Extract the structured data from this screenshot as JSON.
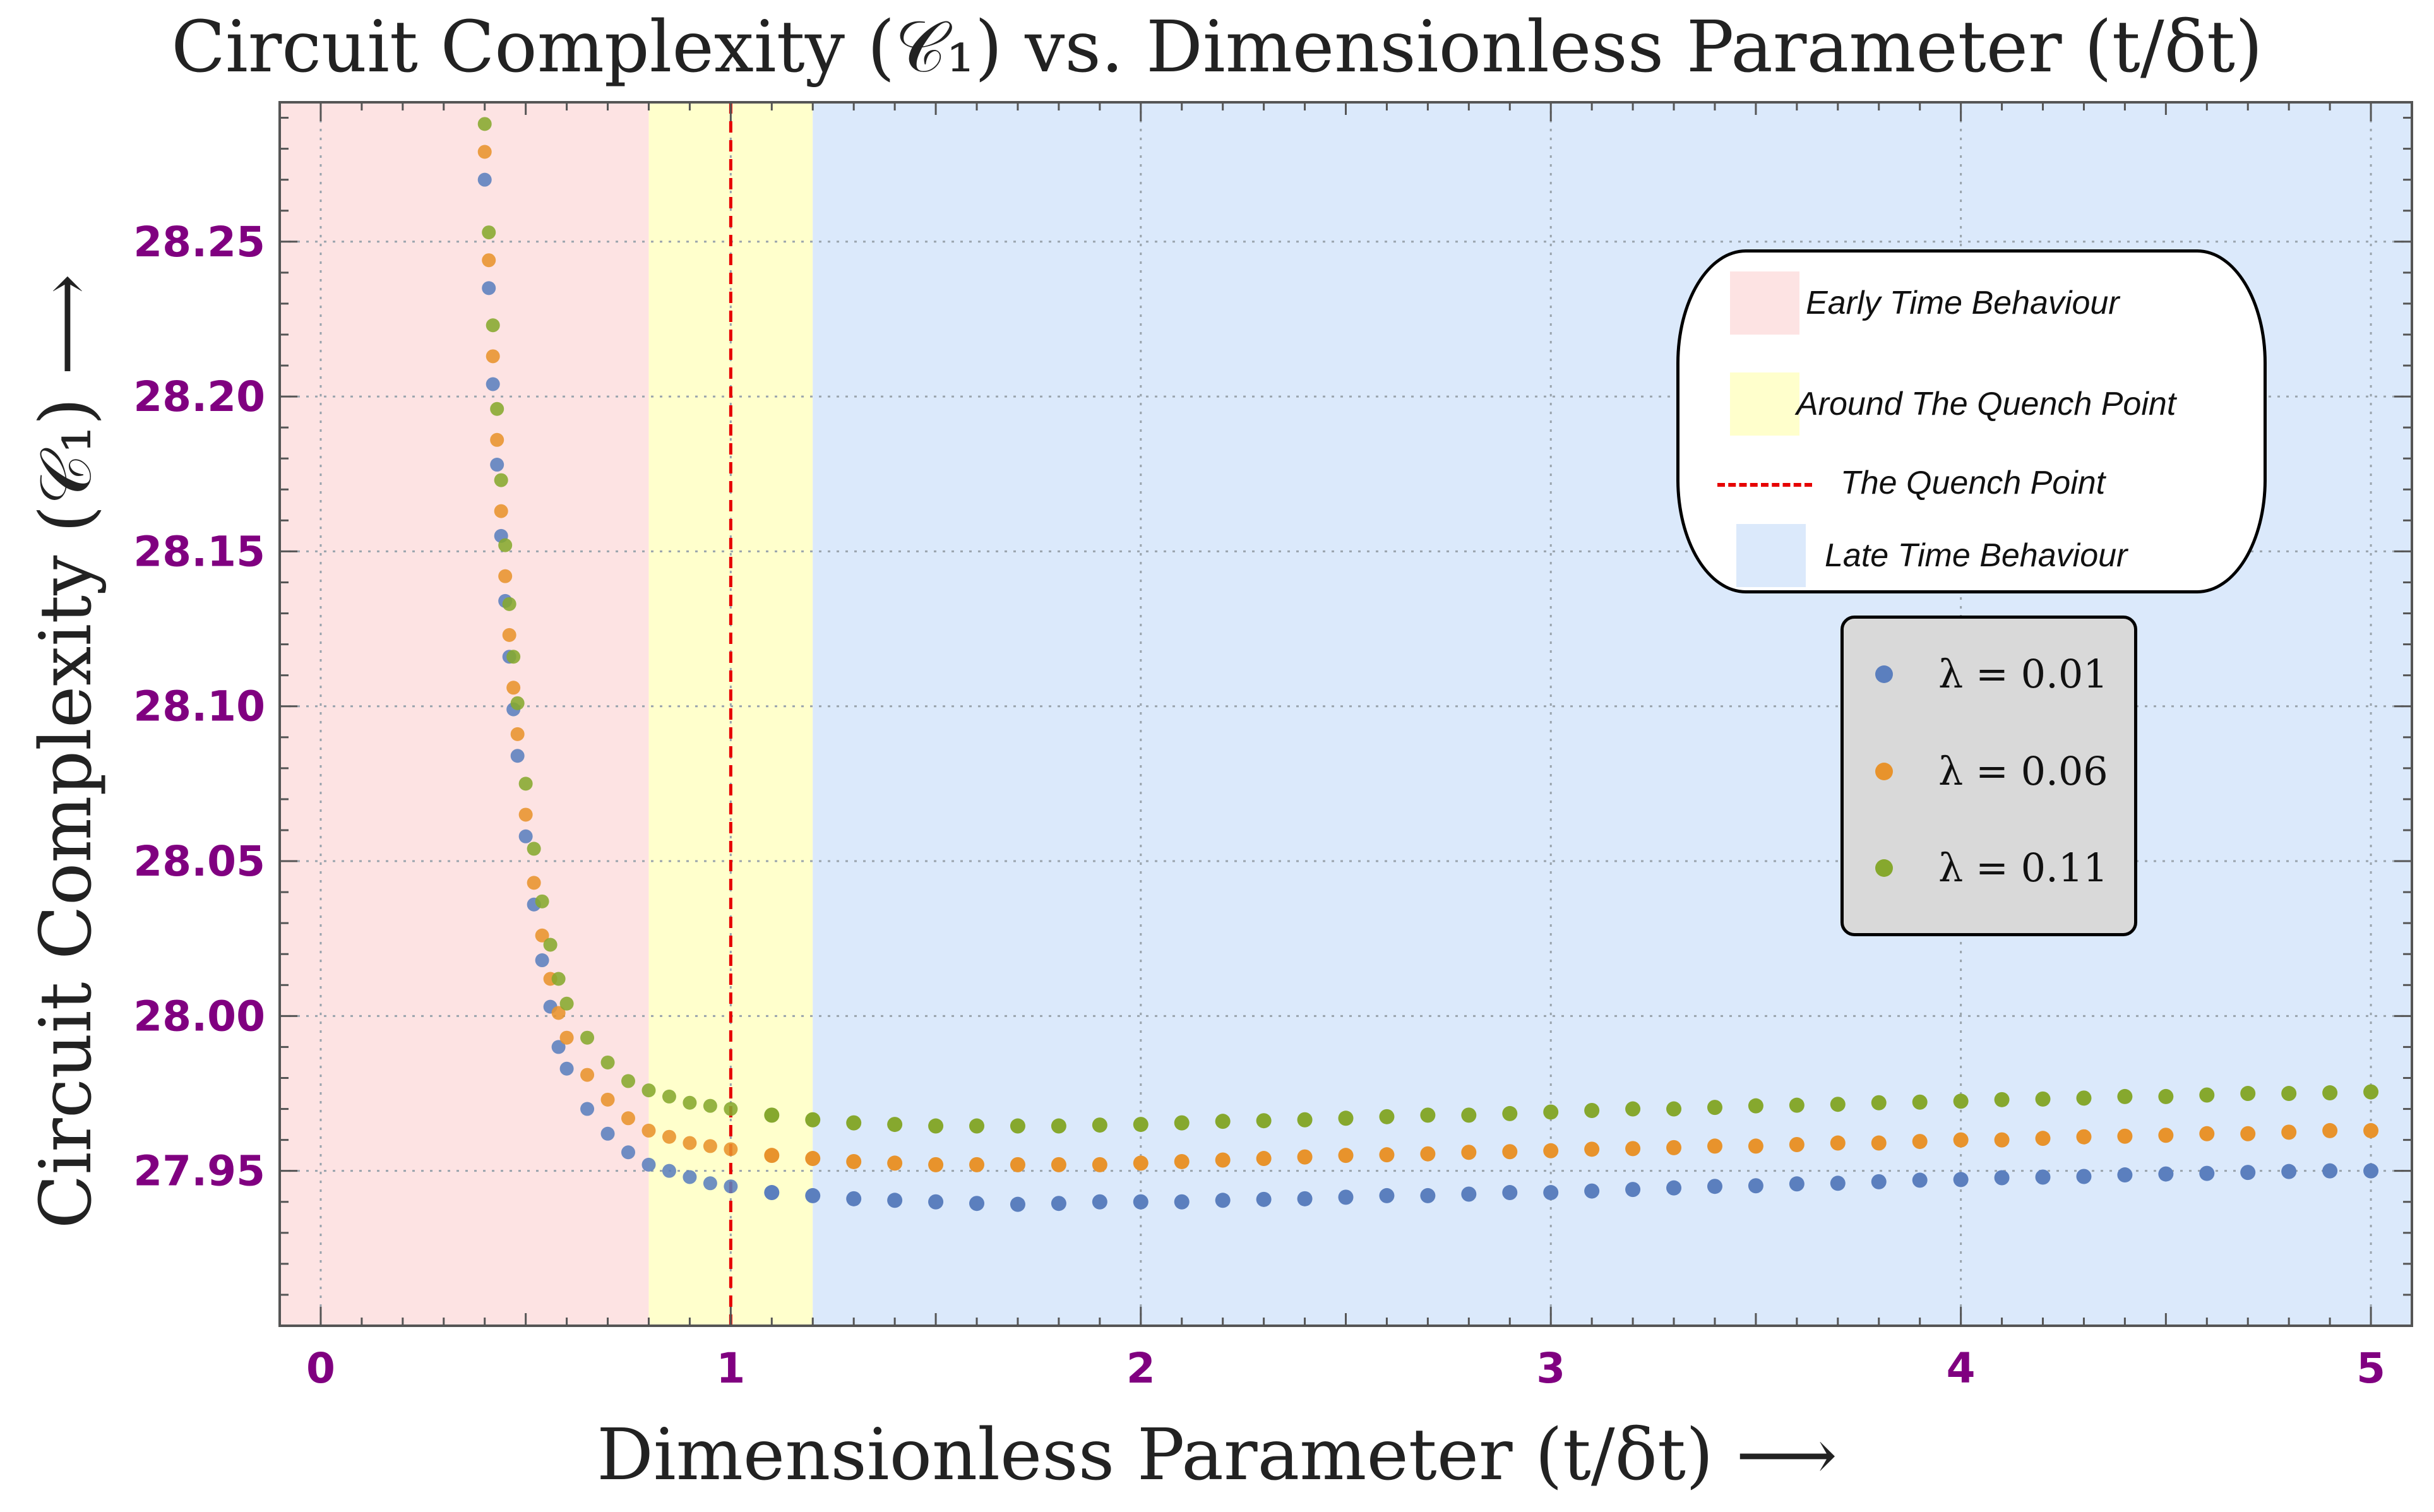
{
  "chart_data": {
    "type": "scatter",
    "title": "Circuit Complexity (𝒞₁) vs. Dimensionless Parameter (t/δt)",
    "xlabel": "Dimensionless Parameter (t/δt) ⟶",
    "ylabel": "Circuit Complexity (𝒞₁) ⟶",
    "xlim": [
      -0.1,
      5.1
    ],
    "ylim": [
      27.9,
      28.295
    ],
    "x_ticks": [
      0,
      1,
      2,
      3,
      4,
      5
    ],
    "x_tick_labels": [
      "0",
      "1",
      "2",
      "3",
      "4",
      "5"
    ],
    "y_ticks": [
      27.95,
      28.0,
      28.05,
      28.1,
      28.15,
      28.2,
      28.25
    ],
    "y_tick_labels": [
      "27.95",
      "28.00",
      "28.05",
      "28.10",
      "28.15",
      "28.20",
      "28.25"
    ],
    "grid": true,
    "regions": [
      {
        "name": "early",
        "label": "Early Time Behaviour",
        "x_from": -0.1,
        "x_to": 0.8,
        "color": "#fde3e3"
      },
      {
        "name": "around",
        "label": "Around The Quench Point",
        "x_from": 0.8,
        "x_to": 1.2,
        "color": "#ffffcc"
      },
      {
        "name": "late",
        "label": "Late Time Behaviour",
        "x_from": 1.2,
        "x_to": 5.1,
        "color": "#dbe9fb"
      }
    ],
    "quench_line": {
      "x": 1,
      "label": "The Quench Point",
      "color": "#e60000"
    },
    "series": [
      {
        "name": "λ = 0.01",
        "color": "#5b7fbe",
        "early_points": [
          [
            0.4,
            28.27
          ],
          [
            0.41,
            28.235
          ],
          [
            0.42,
            28.204
          ],
          [
            0.43,
            28.178
          ],
          [
            0.44,
            28.155
          ],
          [
            0.45,
            28.134
          ],
          [
            0.46,
            28.116
          ],
          [
            0.47,
            28.099
          ],
          [
            0.48,
            28.084
          ],
          [
            0.5,
            28.058
          ],
          [
            0.52,
            28.036
          ],
          [
            0.54,
            28.018
          ],
          [
            0.56,
            28.003
          ],
          [
            0.58,
            27.99
          ],
          [
            0.6,
            27.983
          ],
          [
            0.65,
            27.97
          ],
          [
            0.7,
            27.962
          ],
          [
            0.75,
            27.956
          ],
          [
            0.8,
            27.952
          ],
          [
            0.85,
            27.95
          ],
          [
            0.9,
            27.948
          ],
          [
            0.95,
            27.946
          ],
          [
            1.0,
            27.945
          ]
        ],
        "late_points": [
          [
            1.1,
            27.943
          ],
          [
            1.2,
            27.942
          ],
          [
            1.3,
            27.941
          ],
          [
            1.4,
            27.9405
          ],
          [
            1.5,
            27.94
          ],
          [
            1.6,
            27.9395
          ],
          [
            1.7,
            27.9392
          ],
          [
            1.8,
            27.9395
          ],
          [
            1.9,
            27.94
          ],
          [
            2.0,
            27.94
          ],
          [
            2.1,
            27.94
          ],
          [
            2.2,
            27.9405
          ],
          [
            2.3,
            27.9408
          ],
          [
            2.4,
            27.941
          ],
          [
            2.5,
            27.9415
          ],
          [
            2.6,
            27.942
          ],
          [
            2.7,
            27.942
          ],
          [
            2.8,
            27.9425
          ],
          [
            2.9,
            27.943
          ],
          [
            3.0,
            27.943
          ],
          [
            3.1,
            27.9435
          ],
          [
            3.2,
            27.944
          ],
          [
            3.3,
            27.9445
          ],
          [
            3.4,
            27.945
          ],
          [
            3.5,
            27.9452
          ],
          [
            3.6,
            27.9458
          ],
          [
            3.7,
            27.946
          ],
          [
            3.8,
            27.9465
          ],
          [
            3.9,
            27.947
          ],
          [
            4.0,
            27.9472
          ],
          [
            4.1,
            27.9478
          ],
          [
            4.2,
            27.948
          ],
          [
            4.3,
            27.9482
          ],
          [
            4.4,
            27.9487
          ],
          [
            4.5,
            27.949
          ],
          [
            4.6,
            27.9492
          ],
          [
            4.7,
            27.9495
          ],
          [
            4.8,
            27.9498
          ],
          [
            4.9,
            27.95
          ],
          [
            5.0,
            27.95
          ]
        ]
      },
      {
        "name": "λ = 0.06",
        "color": "#e8932c",
        "early_points": [
          [
            0.4,
            28.279
          ],
          [
            0.41,
            28.244
          ],
          [
            0.42,
            28.213
          ],
          [
            0.43,
            28.186
          ],
          [
            0.44,
            28.163
          ],
          [
            0.45,
            28.142
          ],
          [
            0.46,
            28.123
          ],
          [
            0.47,
            28.106
          ],
          [
            0.48,
            28.091
          ],
          [
            0.5,
            28.065
          ],
          [
            0.52,
            28.043
          ],
          [
            0.54,
            28.026
          ],
          [
            0.56,
            28.012
          ],
          [
            0.58,
            28.001
          ],
          [
            0.6,
            27.993
          ],
          [
            0.65,
            27.981
          ],
          [
            0.7,
            27.973
          ],
          [
            0.75,
            27.967
          ],
          [
            0.8,
            27.963
          ],
          [
            0.85,
            27.961
          ],
          [
            0.9,
            27.959
          ],
          [
            0.95,
            27.958
          ],
          [
            1.0,
            27.957
          ]
        ],
        "late_points": [
          [
            1.1,
            27.955
          ],
          [
            1.2,
            27.954
          ],
          [
            1.3,
            27.953
          ],
          [
            1.4,
            27.9525
          ],
          [
            1.5,
            27.952
          ],
          [
            1.6,
            27.952
          ],
          [
            1.7,
            27.952
          ],
          [
            1.8,
            27.952
          ],
          [
            1.9,
            27.952
          ],
          [
            2.0,
            27.9525
          ],
          [
            2.1,
            27.953
          ],
          [
            2.2,
            27.9535
          ],
          [
            2.3,
            27.954
          ],
          [
            2.4,
            27.9545
          ],
          [
            2.5,
            27.955
          ],
          [
            2.6,
            27.9552
          ],
          [
            2.7,
            27.9555
          ],
          [
            2.8,
            27.956
          ],
          [
            2.9,
            27.9562
          ],
          [
            3.0,
            27.9565
          ],
          [
            3.1,
            27.957
          ],
          [
            3.2,
            27.9572
          ],
          [
            3.3,
            27.9575
          ],
          [
            3.4,
            27.958
          ],
          [
            3.5,
            27.958
          ],
          [
            3.6,
            27.9585
          ],
          [
            3.7,
            27.959
          ],
          [
            3.8,
            27.959
          ],
          [
            3.9,
            27.9595
          ],
          [
            4.0,
            27.96
          ],
          [
            4.1,
            27.96
          ],
          [
            4.2,
            27.9605
          ],
          [
            4.3,
            27.961
          ],
          [
            4.4,
            27.9612
          ],
          [
            4.5,
            27.9615
          ],
          [
            4.6,
            27.962
          ],
          [
            4.7,
            27.962
          ],
          [
            4.8,
            27.9625
          ],
          [
            4.9,
            27.963
          ],
          [
            5.0,
            27.963
          ]
        ]
      },
      {
        "name": "λ = 0.11",
        "color": "#86a82e",
        "early_points": [
          [
            0.4,
            28.288
          ],
          [
            0.41,
            28.253
          ],
          [
            0.42,
            28.223
          ],
          [
            0.43,
            28.196
          ],
          [
            0.44,
            28.173
          ],
          [
            0.45,
            28.152
          ],
          [
            0.46,
            28.133
          ],
          [
            0.47,
            28.116
          ],
          [
            0.48,
            28.101
          ],
          [
            0.5,
            28.075
          ],
          [
            0.52,
            28.054
          ],
          [
            0.54,
            28.037
          ],
          [
            0.56,
            28.023
          ],
          [
            0.58,
            28.012
          ],
          [
            0.6,
            28.004
          ],
          [
            0.65,
            27.993
          ],
          [
            0.7,
            27.985
          ],
          [
            0.75,
            27.979
          ],
          [
            0.8,
            27.976
          ],
          [
            0.85,
            27.974
          ],
          [
            0.9,
            27.972
          ],
          [
            0.95,
            27.971
          ],
          [
            1.0,
            27.97
          ]
        ],
        "late_points": [
          [
            1.1,
            27.968
          ],
          [
            1.2,
            27.9665
          ],
          [
            1.3,
            27.9655
          ],
          [
            1.4,
            27.965
          ],
          [
            1.5,
            27.9645
          ],
          [
            1.6,
            27.9645
          ],
          [
            1.7,
            27.9645
          ],
          [
            1.8,
            27.9645
          ],
          [
            1.9,
            27.9648
          ],
          [
            2.0,
            27.965
          ],
          [
            2.1,
            27.9655
          ],
          [
            2.2,
            27.966
          ],
          [
            2.3,
            27.9662
          ],
          [
            2.4,
            27.9665
          ],
          [
            2.5,
            27.967
          ],
          [
            2.6,
            27.9675
          ],
          [
            2.7,
            27.968
          ],
          [
            2.8,
            27.968
          ],
          [
            2.9,
            27.9685
          ],
          [
            3.0,
            27.969
          ],
          [
            3.1,
            27.9695
          ],
          [
            3.2,
            27.97
          ],
          [
            3.3,
            27.97
          ],
          [
            3.4,
            27.9705
          ],
          [
            3.5,
            27.971
          ],
          [
            3.6,
            27.9712
          ],
          [
            3.7,
            27.9715
          ],
          [
            3.8,
            27.972
          ],
          [
            3.9,
            27.9722
          ],
          [
            4.0,
            27.9725
          ],
          [
            4.1,
            27.973
          ],
          [
            4.2,
            27.9732
          ],
          [
            4.3,
            27.9735
          ],
          [
            4.4,
            27.974
          ],
          [
            4.5,
            27.974
          ],
          [
            4.6,
            27.9745
          ],
          [
            4.7,
            27.975
          ],
          [
            4.8,
            27.975
          ],
          [
            4.9,
            27.9752
          ],
          [
            5.0,
            27.9755
          ]
        ]
      }
    ]
  }
}
